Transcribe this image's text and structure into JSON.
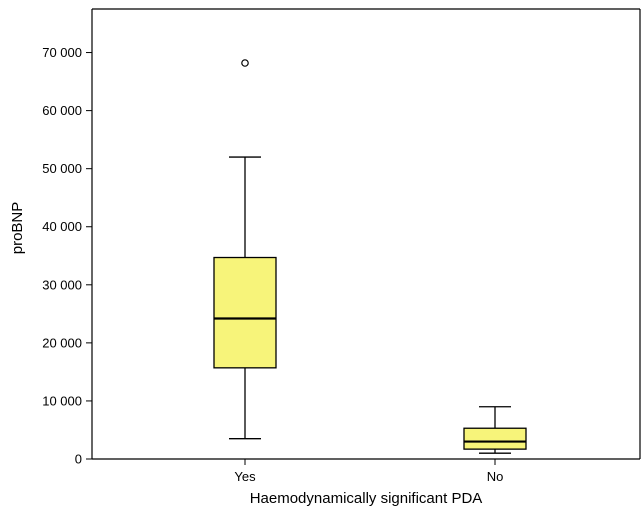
{
  "chart_data": {
    "type": "boxplot",
    "title": "",
    "xlabel": "Haemodynamically significant PDA",
    "ylabel": "proBNP",
    "ylim": [
      0,
      77500
    ],
    "yticks": [
      0,
      10000,
      20000,
      30000,
      40000,
      50000,
      60000,
      70000
    ],
    "ytick_labels": [
      "0",
      "10 000",
      "20 000",
      "30 000",
      "40 000",
      "50 000",
      "60 000",
      "70 000"
    ],
    "categories": [
      "Yes",
      "No"
    ],
    "box_color": "#f7f47a",
    "boxes": [
      {
        "category": "Yes",
        "whisker_low": 3500,
        "q1": 15700,
        "median": 24200,
        "q3": 34700,
        "whisker_high": 52000,
        "outliers": [
          68200
        ]
      },
      {
        "category": "No",
        "whisker_low": 1000,
        "q1": 1700,
        "median": 3000,
        "q3": 5300,
        "whisker_high": 9000,
        "outliers": []
      }
    ]
  }
}
